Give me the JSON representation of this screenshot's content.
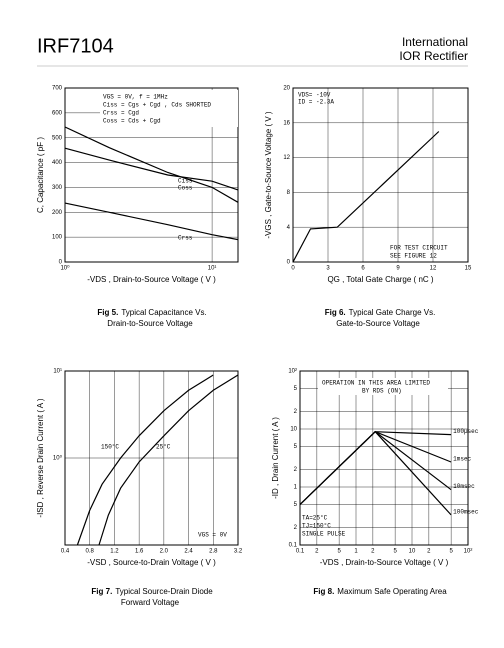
{
  "header": {
    "part": "IRF7104",
    "brand": [
      "International",
      "IOR Rectifier"
    ]
  },
  "chart_data": [
    {
      "type": "line",
      "caption_label": "Fig 5.",
      "caption": [
        "Typical Capacitance Vs.",
        "Drain-to-Source Voltage"
      ],
      "xlabel": "-VDS , Drain-to-Source Voltage ( V )",
      "ylabel": "C, Capacitance ( pF )",
      "xlog": true,
      "xlim": [
        1,
        15
      ],
      "xticks": [
        {
          "value": 1,
          "label": "10⁰"
        },
        {
          "value": 10,
          "label": "10¹"
        }
      ],
      "ylim": [
        0,
        700
      ],
      "yticks": [
        0,
        100,
        200,
        300,
        400,
        500,
        600,
        700
      ],
      "grid": true,
      "annotations": [
        "VGS = 0V,   f = 1MHz",
        "Ciss = Cgs + Cgd , Cds SHORTED",
        "Crss = Cgd",
        "Coss = Cds + Cgd"
      ],
      "series": [
        {
          "name": "Ciss",
          "color": "#000000",
          "x": [
            1,
            2,
            5,
            10,
            15
          ],
          "values": [
            458,
            410,
            350,
            325,
            290
          ]
        },
        {
          "name": "Coss",
          "color": "#000000",
          "x": [
            1,
            2,
            5,
            10,
            15
          ],
          "values": [
            543,
            460,
            360,
            300,
            240
          ]
        },
        {
          "name": "Crss",
          "color": "#000000",
          "x": [
            1,
            2,
            5,
            10,
            15
          ],
          "values": [
            237,
            200,
            150,
            110,
            90
          ]
        }
      ]
    },
    {
      "type": "line",
      "caption_label": "Fig 6.",
      "caption": [
        "Typical Gate Charge Vs.",
        "Gate-to-Source Voltage"
      ],
      "xlabel": "QG , Total Gate Charge ( nC )",
      "ylabel": "-VGS , Gate-to-Source Voltage ( V )",
      "xlim": [
        0,
        15
      ],
      "xticks": [
        0,
        3,
        6,
        9,
        12,
        15
      ],
      "ylim": [
        0,
        20
      ],
      "yticks": [
        0,
        4,
        8,
        12,
        16,
        20
      ],
      "grid": true,
      "annotations": [
        "VDS= -10V",
        "ID = -2.3A",
        "FOR TEST CIRCUIT",
        "SEE FIGURE 12"
      ],
      "series": [
        {
          "color": "#000000",
          "x": [
            0,
            1.5,
            3.8,
            12.5
          ],
          "values": [
            0,
            3.8,
            4,
            15
          ]
        }
      ]
    },
    {
      "type": "line",
      "caption_label": "Fig 7.",
      "caption": [
        "Typical Source-Drain Diode",
        "Forward Voltage"
      ],
      "xlabel": "-VSD , Source-to-Drain Voltage ( V )",
      "ylabel": "-ISD , Reverse Drain Current ( A )",
      "xlim": [
        0.4,
        3.2
      ],
      "xticks": [
        0.4,
        0.8,
        1.2,
        1.6,
        {
          "value": 2,
          "label": "2.0"
        },
        2.4,
        2.8,
        3.2
      ],
      "ylog": true,
      "ylim": [
        0.1,
        10
      ],
      "yticks": [
        {
          "value": 1,
          "label": "10⁰"
        },
        {
          "value": 10,
          "label": "10¹"
        }
      ],
      "grid": true,
      "annotations": [
        "VGS = 0V"
      ],
      "series": [
        {
          "name": "150°C",
          "color": "#000000",
          "x": [
            0.6,
            0.8,
            1.0,
            1.3,
            1.6,
            2.0,
            2.4,
            2.8
          ],
          "values": [
            0.1,
            0.25,
            0.5,
            1.0,
            1.8,
            3.5,
            6,
            9
          ]
        },
        {
          "name": "25°C",
          "color": "#000000",
          "x": [
            0.95,
            1.1,
            1.3,
            1.6,
            2.0,
            2.4,
            2.8,
            3.2
          ],
          "values": [
            0.1,
            0.22,
            0.45,
            0.9,
            1.8,
            3.5,
            6,
            9
          ]
        }
      ]
    },
    {
      "type": "line",
      "caption_label": "Fig 8.",
      "caption": [
        "Maximum Safe Operating Area"
      ],
      "xlabel": "-VDS , Drain-to-Source Voltage ( V )",
      "ylabel": "-ID , Drain Current ( A )",
      "xlog": true,
      "xlim": [
        0.1,
        100
      ],
      "xticks": [
        0.1,
        {
          "value": 0.2,
          "label": "2"
        },
        {
          "value": 0.5,
          "label": "5"
        },
        1,
        2,
        5,
        10,
        {
          "value": 20,
          "label": "2"
        },
        {
          "value": 50,
          "label": "5"
        },
        {
          "value": 100,
          "label": "10²"
        }
      ],
      "ylog": true,
      "ylim": [
        0.1,
        100
      ],
      "yticks": [
        0.1,
        {
          "value": 0.2,
          "label": "2"
        },
        {
          "value": 0.5,
          "label": "5"
        },
        1,
        2,
        5,
        10,
        {
          "value": 20,
          "label": "2"
        },
        {
          "value": 50,
          "label": "5"
        },
        {
          "value": 100,
          "label": "10²"
        }
      ],
      "grid": true,
      "annotations": [
        "OPERATION IN THIS AREA LIMITED",
        "BY RDS (ON)",
        "TA=25°C",
        "TJ=150°C",
        "SINGLE PULSE"
      ],
      "series": [
        {
          "name": "100µsec",
          "color": "#000000",
          "x": [
            0.1,
            2.2,
            50
          ],
          "values": [
            0.5,
            9,
            8
          ]
        },
        {
          "name": "1msec",
          "color": "#000000",
          "x": [
            0.1,
            2.2,
            50
          ],
          "values": [
            0.5,
            9,
            2.7
          ]
        },
        {
          "name": "10msec",
          "color": "#000000",
          "x": [
            0.1,
            2.2,
            50
          ],
          "values": [
            0.5,
            9,
            0.9
          ]
        },
        {
          "name": "100msec",
          "color": "#000000",
          "x": [
            0.1,
            2.2,
            50
          ],
          "values": [
            0.5,
            9,
            0.33
          ]
        }
      ]
    }
  ]
}
